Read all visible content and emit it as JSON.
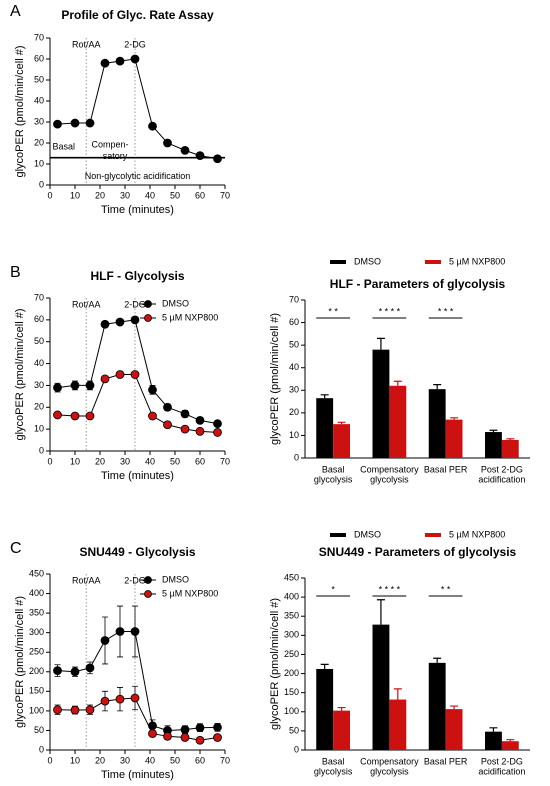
{
  "chart_data": [
    {
      "type": "line",
      "panel": "A",
      "title": "Profile of Glyc. Rate Assay",
      "x_label": "Time (minutes)",
      "y_label": "glycoPER (pmol/min/cell #)",
      "x": [
        3,
        10,
        16,
        22,
        28,
        34,
        41,
        47,
        54,
        60,
        67
      ],
      "series": [
        {
          "name": null,
          "color": "#000000",
          "values": [
            29,
            29.5,
            29.5,
            58,
            59,
            60,
            28,
            20,
            16.5,
            14,
            12.5
          ]
        }
      ],
      "xlim": [
        0,
        70
      ],
      "xticks": [
        0,
        10,
        20,
        30,
        40,
        50,
        60,
        70
      ],
      "ylim": [
        0,
        70
      ],
      "yticks": [
        0,
        10,
        20,
        30,
        40,
        50,
        60,
        70
      ],
      "events": [
        {
          "label": "Rot/AA",
          "x": 14.5
        },
        {
          "label": "2-DG",
          "x": 34
        }
      ],
      "baseline": 13,
      "annotations": {
        "basal": "Basal",
        "compensatory": [
          "Compen-",
          "satory"
        ],
        "non_glycolytic": "Non-glycolytic acidification"
      }
    },
    {
      "type": "line",
      "panel": "B",
      "title": "HLF - Glycolysis",
      "x_label": "Time (minutes)",
      "y_label": "glycoPER (pmol/min/cell #)",
      "x": [
        3,
        10,
        16,
        22,
        28,
        34,
        41,
        47,
        54,
        60,
        67
      ],
      "series": [
        {
          "name": "DMSO",
          "color": "#000000",
          "values": [
            29,
            30,
            30,
            58,
            59,
            60,
            28,
            20,
            17,
            14,
            12.5
          ],
          "errors": [
            2,
            2,
            2,
            1,
            1,
            1,
            2,
            1.5,
            1.5,
            1,
            1
          ]
        },
        {
          "name": "5 µM NXP800",
          "color": "#cc1111",
          "values": [
            16.5,
            16,
            16,
            33,
            35,
            35,
            16,
            12,
            10,
            9,
            8.5
          ],
          "errors": [
            1,
            0.8,
            0.8,
            1,
            1,
            1,
            1,
            0.8,
            0.8,
            0.6,
            0.6
          ]
        }
      ],
      "xlim": [
        0,
        70
      ],
      "xticks": [
        0,
        10,
        20,
        30,
        40,
        50,
        60,
        70
      ],
      "ylim": [
        0,
        70
      ],
      "yticks": [
        0,
        10,
        20,
        30,
        40,
        50,
        60,
        70
      ],
      "events": [
        {
          "label": "Rot/AA",
          "x": 14.5
        },
        {
          "label": "2-DG",
          "x": 34
        }
      ]
    },
    {
      "type": "bar",
      "title": "HLF - Parameters of glycolysis",
      "y_label": "glycoPER (pmol/min/cell #)",
      "categories": [
        [
          "Basal",
          "glycolysis"
        ],
        [
          "Compensatory",
          "glycolysis"
        ],
        [
          "Basal PER"
        ],
        [
          "Post 2-DG",
          "acidification"
        ]
      ],
      "series": [
        {
          "name": "DMSO",
          "color": "#000000",
          "values": [
            26.5,
            48,
            30.5,
            11.5
          ],
          "errors": [
            1.5,
            5,
            2,
            0.8
          ]
        },
        {
          "name": "5 µM NXP800",
          "color": "#cc1111",
          "values": [
            15,
            32,
            17,
            8
          ],
          "errors": [
            0.8,
            2,
            0.8,
            0.5
          ]
        }
      ],
      "ylim": [
        0,
        70
      ],
      "yticks": [
        0,
        10,
        20,
        30,
        40,
        50,
        60,
        70
      ],
      "significance": [
        "* *",
        "* * * *",
        "* * *",
        null
      ]
    },
    {
      "type": "line",
      "panel": "C",
      "title": "SNU449 - Glycolysis",
      "x_label": "Time (minutes)",
      "y_label": "glycoPER (pmol/min/cell #)",
      "x": [
        3,
        10,
        16,
        22,
        28,
        34,
        41,
        47,
        54,
        60,
        67
      ],
      "series": [
        {
          "name": "DMSO",
          "color": "#000000",
          "values": [
            203,
            200,
            210,
            280,
            303,
            303,
            62,
            50,
            52,
            57,
            58
          ],
          "errors": [
            15,
            12,
            15,
            60,
            65,
            65,
            15,
            12,
            10,
            10,
            10
          ]
        },
        {
          "name": "5 µM NXP800",
          "color": "#cc1111",
          "values": [
            103,
            102,
            103,
            125,
            130,
            133,
            42,
            35,
            32,
            25,
            32
          ],
          "errors": [
            12,
            10,
            12,
            25,
            30,
            30,
            8,
            8,
            5,
            5,
            5
          ]
        }
      ],
      "xlim": [
        0,
        70
      ],
      "xticks": [
        0,
        10,
        20,
        30,
        40,
        50,
        60,
        70
      ],
      "ylim": [
        0,
        450
      ],
      "yticks": [
        0,
        50,
        100,
        150,
        200,
        250,
        300,
        350,
        400,
        450
      ],
      "events": [
        {
          "label": "Rot/AA",
          "x": 14.5
        },
        {
          "label": "2-DG",
          "x": 34
        }
      ]
    },
    {
      "type": "bar",
      "title": "SNU449 - Parameters of glycolysis",
      "y_label": "glycoPER (pmol/min/cell #)",
      "categories": [
        [
          "Basal",
          "glycolysis"
        ],
        [
          "Compensatory",
          "glycolysis"
        ],
        [
          "Basal PER"
        ],
        [
          "Post 2-DG",
          "acidification"
        ]
      ],
      "series": [
        {
          "name": "DMSO",
          "color": "#000000",
          "values": [
            212,
            328,
            228,
            48
          ],
          "errors": [
            12,
            65,
            12,
            10
          ]
        },
        {
          "name": "5 µM NXP800",
          "color": "#cc1111",
          "values": [
            103,
            132,
            107,
            23
          ],
          "errors": [
            8,
            28,
            8,
            4
          ]
        }
      ],
      "ylim": [
        0,
        450
      ],
      "yticks": [
        0,
        50,
        100,
        150,
        200,
        250,
        300,
        350,
        400,
        450
      ],
      "significance": [
        "*",
        "* * * *",
        "* *",
        null
      ]
    }
  ]
}
